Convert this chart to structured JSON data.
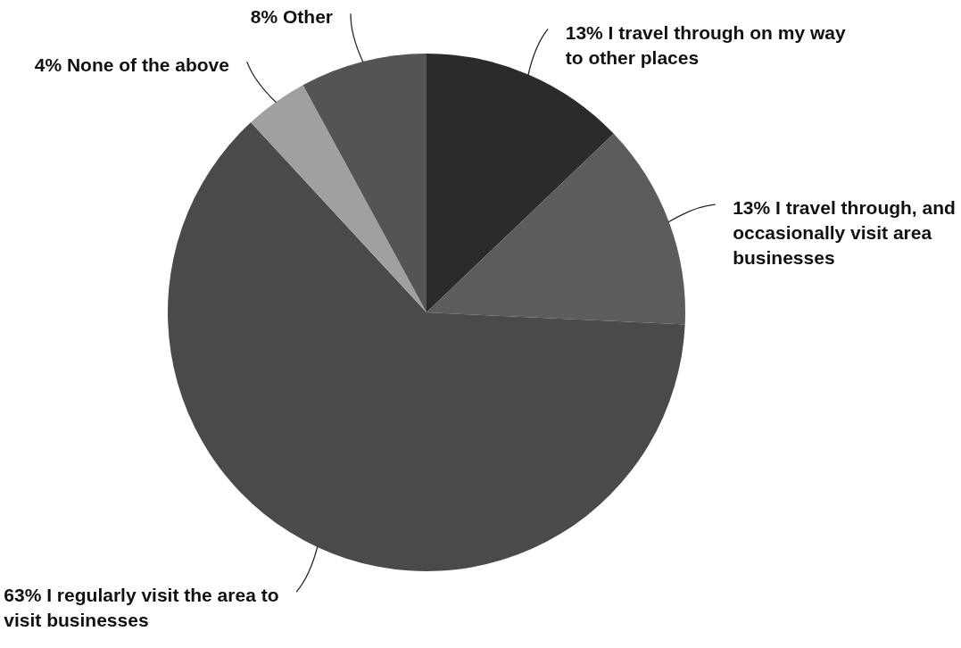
{
  "chart_data": {
    "type": "pie",
    "categories": [
      "I travel through on my way to other places",
      "I travel through, and occasionally visit area businesses",
      "I regularly visit the area to visit businesses",
      "None of the above",
      "Other"
    ],
    "values": [
      13,
      13,
      63,
      4,
      8
    ],
    "value_labels": [
      "13%",
      "13%",
      "63%",
      "4%",
      "8%"
    ],
    "colors": [
      "#2b2b2b",
      "#5c5c5c",
      "#4a4a4a",
      "#a0a0a0",
      "#545454"
    ]
  }
}
